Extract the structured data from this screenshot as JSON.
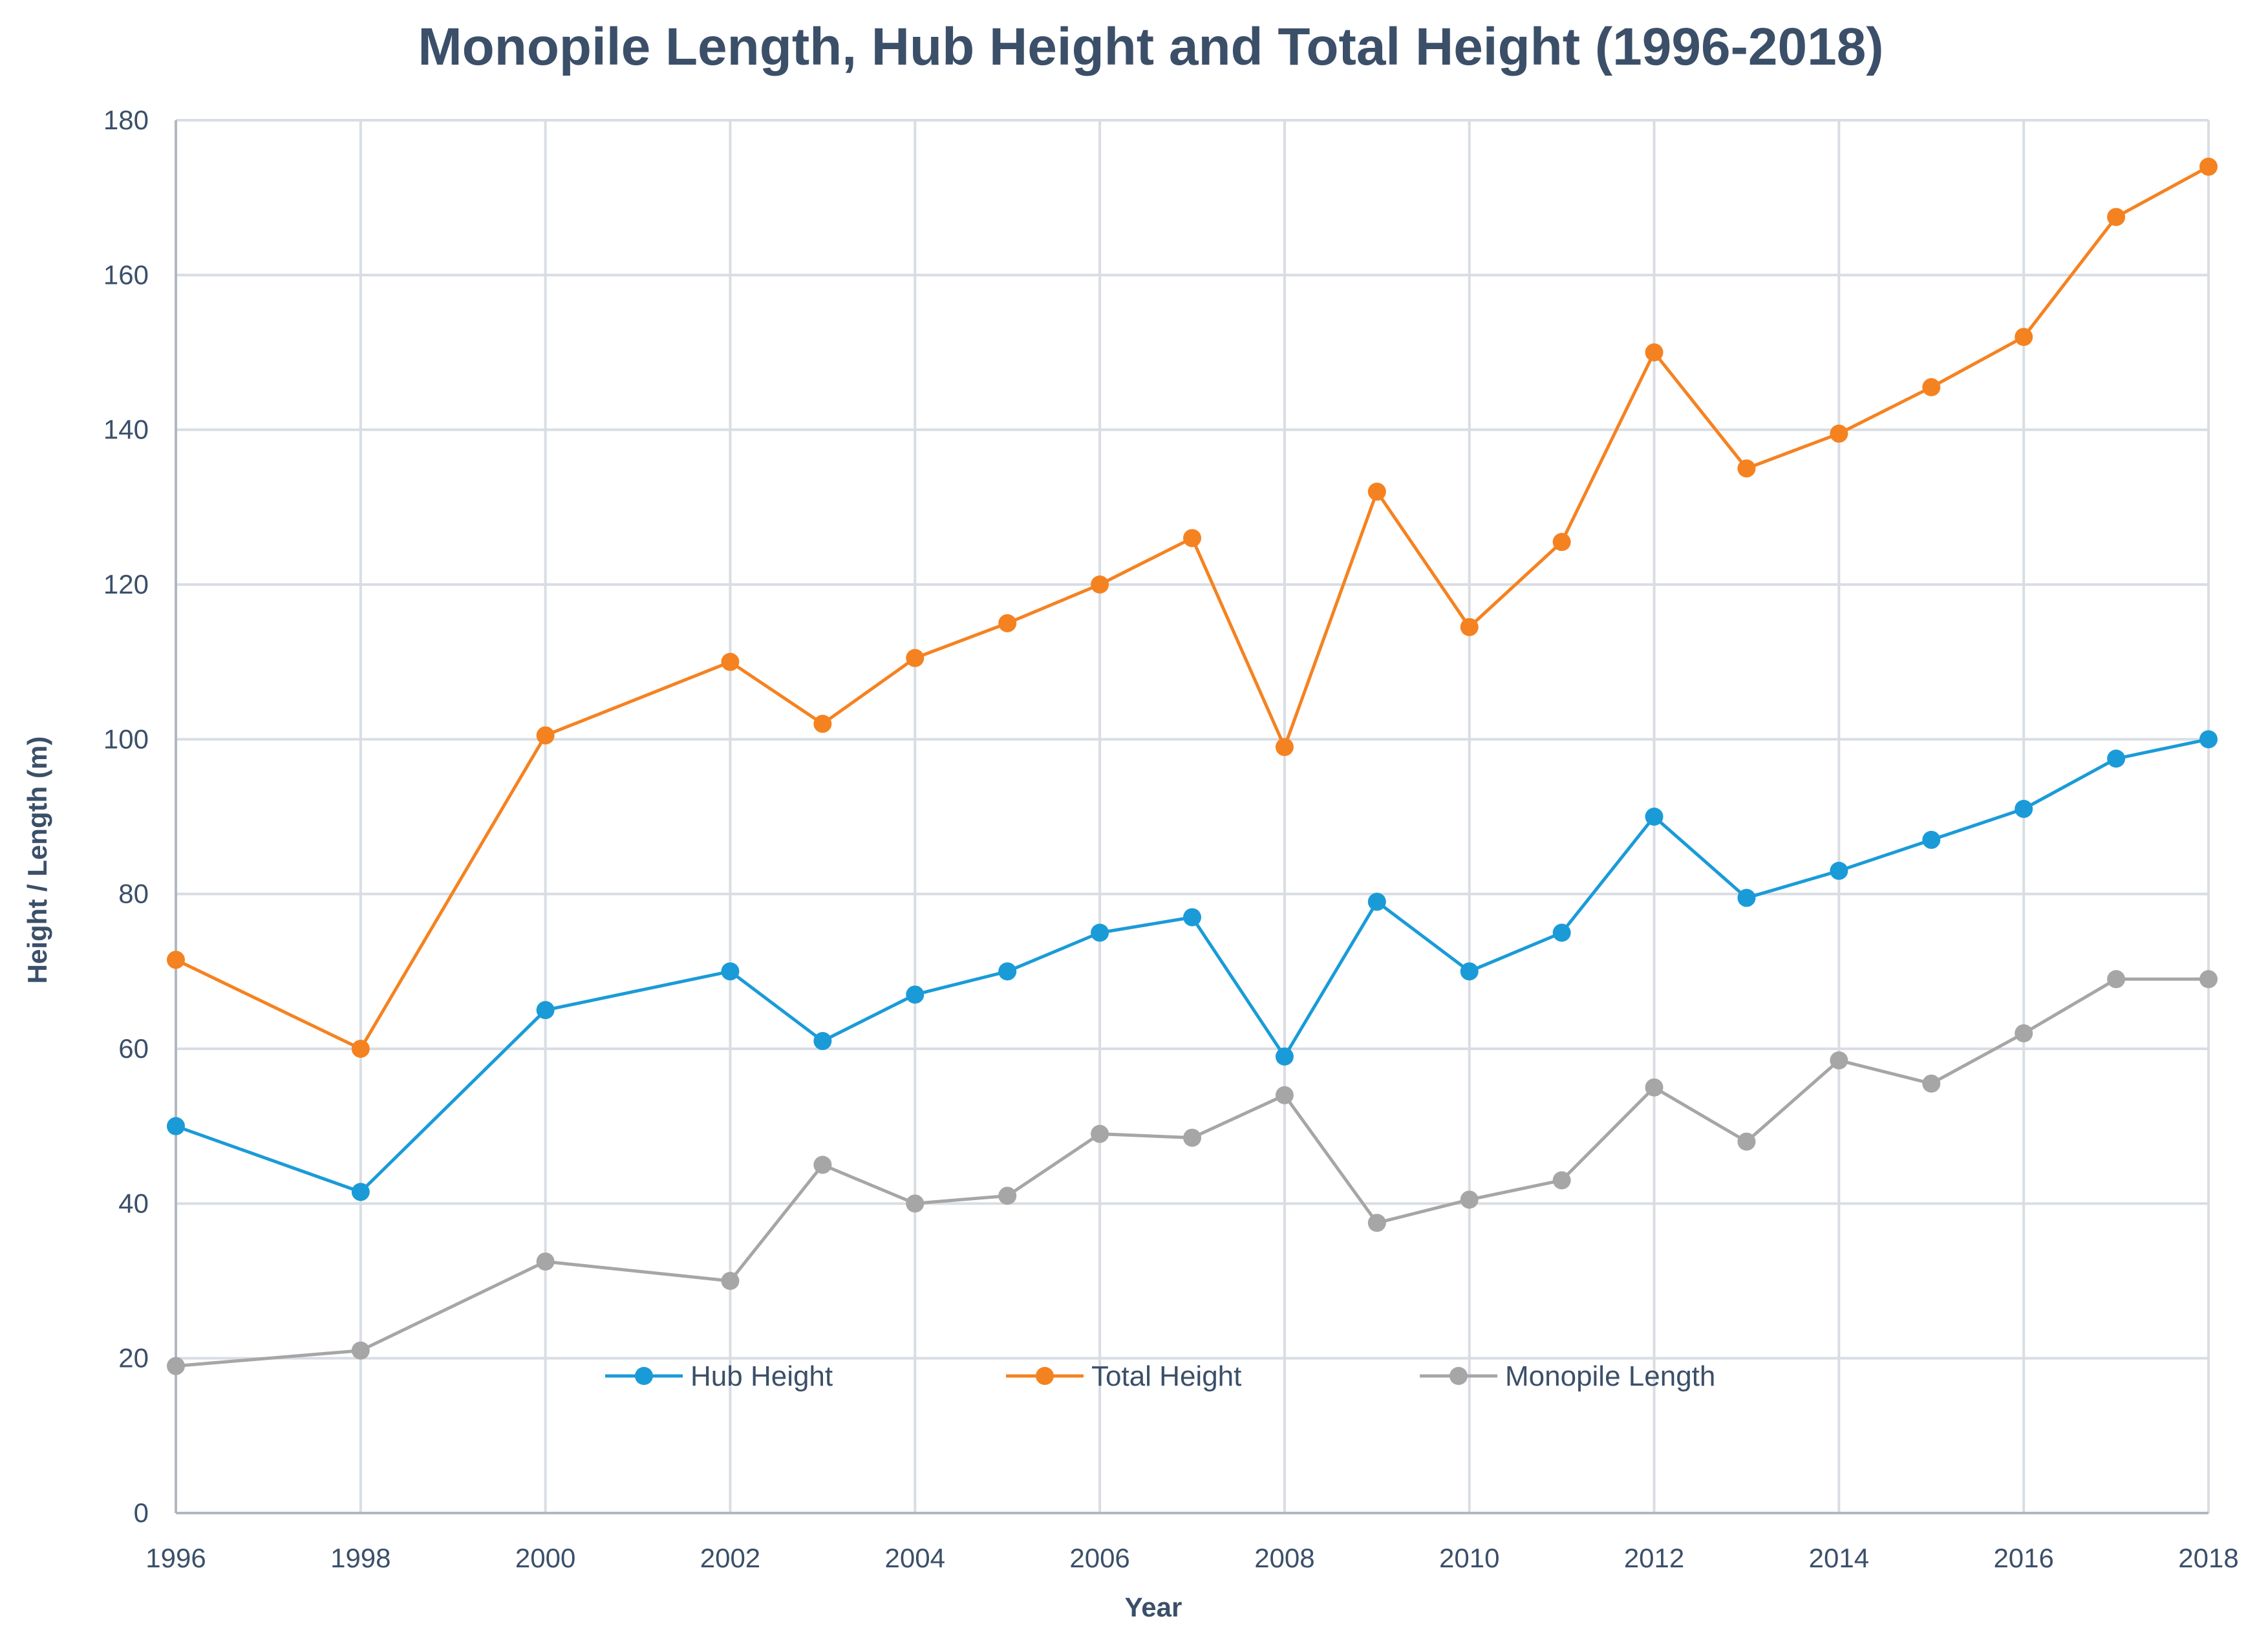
{
  "chart_data": {
    "type": "line",
    "title": "Monopile Length, Hub Height and Total Height (1996-2018)",
    "xlabel": "Year",
    "ylabel": "Height / Length (m)",
    "xlim": [
      1996,
      2018
    ],
    "ylim": [
      0,
      180
    ],
    "x_ticks": [
      "1996",
      "1998",
      "2000",
      "2002",
      "2004",
      "2006",
      "2008",
      "2010",
      "2012",
      "2014",
      "2016",
      "2018"
    ],
    "y_ticks": [
      "0",
      "20",
      "40",
      "60",
      "80",
      "100",
      "120",
      "140",
      "160",
      "180"
    ],
    "grid": true,
    "legend_position": "bottom-inside",
    "x": [
      1996,
      1998,
      2000,
      2002,
      2003,
      2004,
      2005,
      2006,
      2007,
      2008,
      2009,
      2010,
      2011,
      2012,
      2013,
      2014,
      2015,
      2016,
      2017,
      2018
    ],
    "series": [
      {
        "name": "Hub Height",
        "color": "#1a9bd8",
        "values": [
          50,
          41.5,
          65,
          70,
          61,
          67,
          70,
          75,
          77,
          59,
          79,
          70,
          75,
          90,
          79.5,
          83,
          87,
          91,
          97.5,
          100
        ]
      },
      {
        "name": "Total Height",
        "color": "#f58220",
        "values": [
          71.5,
          60,
          100.5,
          110,
          102,
          110.5,
          115,
          120,
          126,
          99,
          132,
          114.5,
          125.5,
          150,
          135,
          139.5,
          145.5,
          152,
          167.5,
          174
        ]
      },
      {
        "name": "Monopile Length",
        "color": "#a6a6a6",
        "values": [
          19,
          21,
          32.5,
          30,
          45,
          40,
          41,
          49,
          48.5,
          54,
          37.5,
          40.5,
          43,
          55,
          48,
          58.5,
          55.5,
          62,
          69,
          69
        ]
      }
    ]
  }
}
